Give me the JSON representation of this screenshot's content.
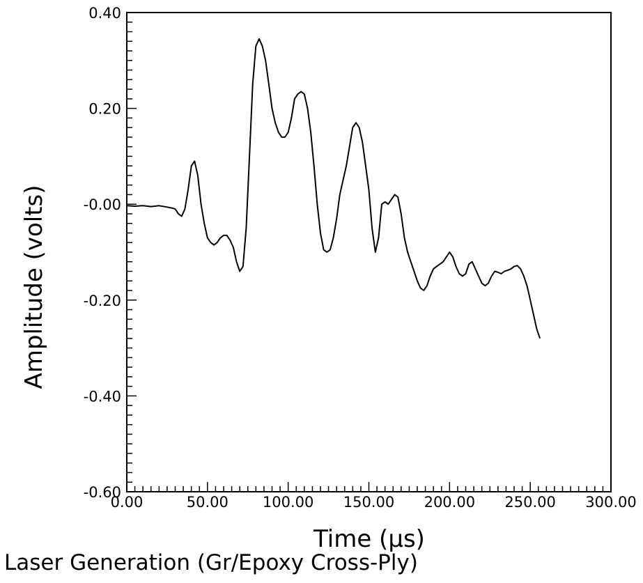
{
  "chart_data": {
    "type": "line",
    "title": "Laser Generation (Gr/Epoxy Cross-Ply)",
    "xlabel": "Time (μs)",
    "ylabel": "Amplitude (volts)",
    "xlim": [
      0,
      300
    ],
    "ylim": [
      -0.6,
      0.4
    ],
    "x_ticks": [
      "0.00",
      "50.00",
      "100.00",
      "150.00",
      "200.00",
      "250.00",
      "300.00"
    ],
    "y_ticks": [
      "0.40",
      "0.20",
      "-0.00",
      "-0.20",
      "-0.40",
      "-0.60"
    ],
    "grid": false,
    "series": [
      {
        "color": "#000000",
        "x": [
          0,
          5,
          10,
          15,
          20,
          25,
          28,
          30,
          32,
          34,
          36,
          38,
          40,
          42,
          44,
          46,
          48,
          50,
          52,
          54,
          56,
          58,
          60,
          62,
          64,
          66,
          68,
          70,
          72,
          74,
          76,
          78,
          80,
          82,
          84,
          86,
          88,
          90,
          92,
          94,
          96,
          98,
          100,
          102,
          104,
          106,
          108,
          110,
          112,
          114,
          116,
          118,
          120,
          122,
          124,
          126,
          128,
          130,
          132,
          134,
          136,
          138,
          140,
          142,
          144,
          146,
          148,
          150,
          152,
          154,
          156,
          158,
          160,
          162,
          164,
          166,
          168,
          170,
          172,
          174,
          176,
          178,
          180,
          182,
          184,
          186,
          188,
          190,
          192,
          194,
          196,
          198,
          200,
          202,
          204,
          206,
          208,
          210,
          212,
          214,
          216,
          218,
          220,
          222,
          224,
          226,
          228,
          230,
          232,
          234,
          236,
          238,
          240,
          242,
          244,
          246,
          248,
          250,
          252,
          254,
          256
        ],
        "y": [
          -0.003,
          -0.004,
          -0.003,
          -0.005,
          -0.003,
          -0.006,
          -0.008,
          -0.01,
          -0.02,
          -0.025,
          -0.01,
          0.03,
          0.08,
          0.09,
          0.06,
          0.0,
          -0.04,
          -0.07,
          -0.08,
          -0.085,
          -0.08,
          -0.07,
          -0.065,
          -0.065,
          -0.075,
          -0.09,
          -0.12,
          -0.14,
          -0.13,
          -0.05,
          0.1,
          0.25,
          0.33,
          0.345,
          0.33,
          0.3,
          0.25,
          0.2,
          0.17,
          0.15,
          0.14,
          0.14,
          0.15,
          0.18,
          0.22,
          0.23,
          0.235,
          0.23,
          0.2,
          0.15,
          0.08,
          0.0,
          -0.06,
          -0.095,
          -0.1,
          -0.095,
          -0.07,
          -0.03,
          0.02,
          0.05,
          0.08,
          0.12,
          0.16,
          0.17,
          0.16,
          0.13,
          0.08,
          0.03,
          -0.05,
          -0.1,
          -0.07,
          0.0,
          0.005,
          0.0,
          0.01,
          0.02,
          0.015,
          -0.02,
          -0.07,
          -0.1,
          -0.12,
          -0.14,
          -0.16,
          -0.175,
          -0.18,
          -0.17,
          -0.15,
          -0.135,
          -0.13,
          -0.125,
          -0.12,
          -0.11,
          -0.1,
          -0.11,
          -0.13,
          -0.145,
          -0.15,
          -0.145,
          -0.125,
          -0.12,
          -0.135,
          -0.15,
          -0.165,
          -0.17,
          -0.165,
          -0.15,
          -0.14,
          -0.142,
          -0.145,
          -0.14,
          -0.138,
          -0.135,
          -0.13,
          -0.128,
          -0.135,
          -0.15,
          -0.17,
          -0.2,
          -0.23,
          -0.26,
          -0.28
        ]
      }
    ]
  }
}
